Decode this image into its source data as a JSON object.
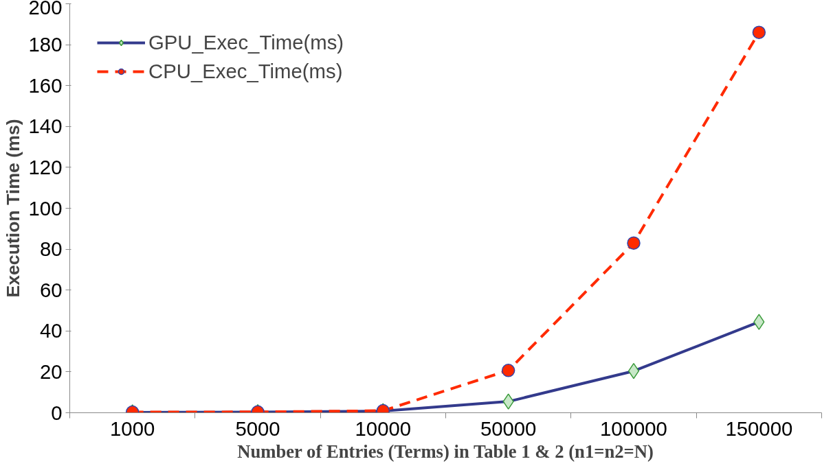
{
  "chart_data": {
    "type": "line",
    "xlabel": "Number of Entries (Terms) in Table 1 & 2 (n1=n2=N)",
    "ylabel": "Execution Time (ms)",
    "categories": [
      "1000",
      "5000",
      "10000",
      "50000",
      "100000",
      "150000"
    ],
    "series": [
      {
        "name": "GPU_Exec_Time(ms)",
        "color": "#333a8c",
        "marker": "diamond",
        "line_style": "solid",
        "values": [
          0.2,
          0.3,
          0.8,
          5.5,
          20.4,
          44.4
        ]
      },
      {
        "name": "CPU_Exec_Time(ms)",
        "color": "#ff2a00",
        "marker": "circle",
        "line_style": "dashed",
        "values": [
          0.3,
          0.4,
          1,
          20.7,
          83,
          186
        ]
      }
    ],
    "ylim": [
      0,
      200
    ],
    "yticks": [
      0,
      20,
      40,
      60,
      80,
      100,
      120,
      140,
      160,
      180,
      200
    ],
    "grid": false,
    "legend": "top left"
  }
}
